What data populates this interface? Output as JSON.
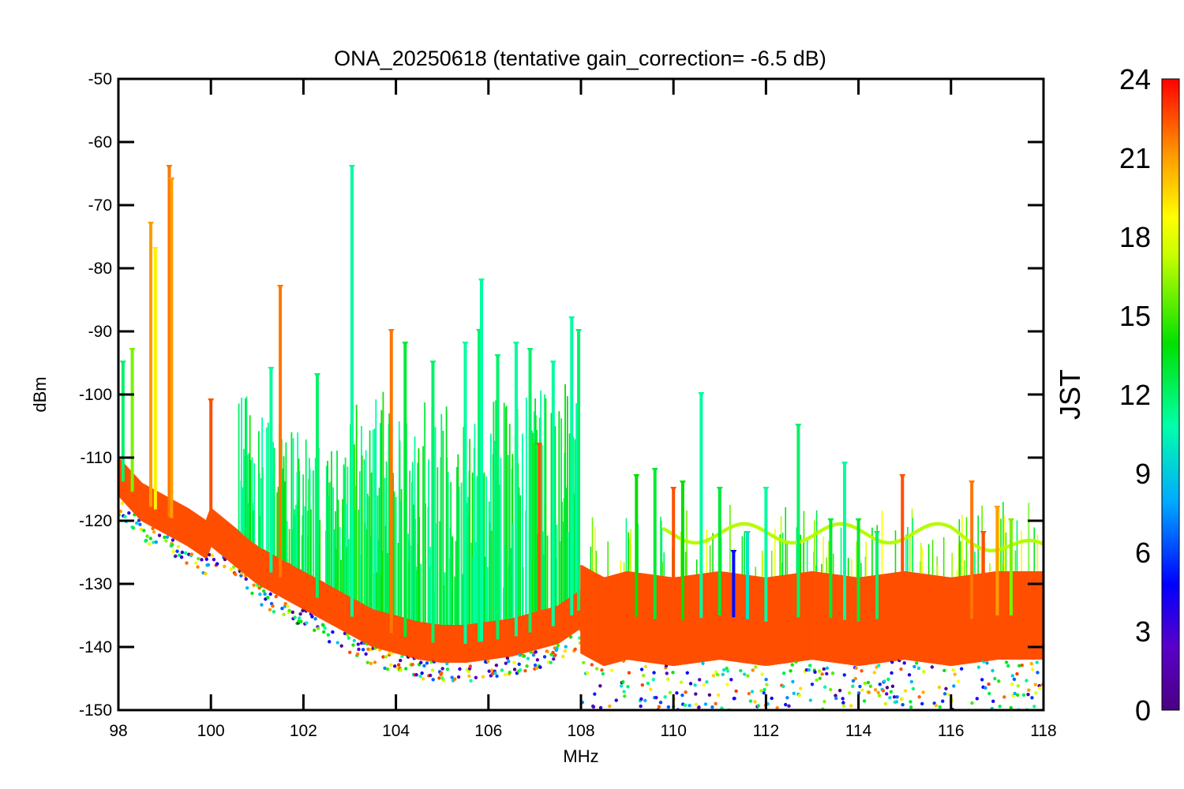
{
  "chart_data": {
    "type": "scatter",
    "title": "ONA_20250618 (tentative gain_correction= -6.5 dB)",
    "xlabel": "MHz",
    "ylabel": "dBm",
    "xlim": [
      98,
      118
    ],
    "ylim": [
      -150,
      -50
    ],
    "x_ticks": [
      "98",
      "100",
      "102",
      "104",
      "106",
      "108",
      "110",
      "112",
      "114",
      "116",
      "118"
    ],
    "y_ticks": [
      "-50",
      "-60",
      "-70",
      "-80",
      "-90",
      "-100",
      "-110",
      "-120",
      "-130",
      "-140",
      "-150"
    ],
    "grid": false,
    "colorbar": {
      "label": "JST",
      "min": 0,
      "max": 24,
      "ticks": [
        "0",
        "3",
        "6",
        "9",
        "12",
        "15",
        "18",
        "21",
        "24"
      ],
      "colormap": "rainbow"
    },
    "series": [
      {
        "description_key": "noise_floor",
        "points": [
          [
            98.0,
            -113
          ],
          [
            98.5,
            -117
          ],
          [
            99.0,
            -119
          ],
          [
            99.5,
            -121
          ],
          [
            99.9,
            -123
          ],
          [
            100.0,
            -121
          ],
          [
            100.5,
            -124
          ],
          [
            101.0,
            -127
          ],
          [
            101.5,
            -129
          ],
          [
            102.0,
            -131
          ],
          [
            102.5,
            -133
          ],
          [
            103.0,
            -135
          ],
          [
            103.5,
            -137
          ],
          [
            104.0,
            -138
          ],
          [
            104.5,
            -139
          ],
          [
            105.0,
            -139.5
          ],
          [
            105.5,
            -139.5
          ],
          [
            106.0,
            -139
          ],
          [
            106.5,
            -138.5
          ],
          [
            107.0,
            -137.5
          ],
          [
            107.5,
            -136.5
          ],
          [
            108.0,
            -134
          ],
          [
            108.5,
            -136
          ],
          [
            109.0,
            -135
          ],
          [
            110.0,
            -136
          ],
          [
            111.0,
            -135
          ],
          [
            112.0,
            -136
          ],
          [
            113.0,
            -135
          ],
          [
            114.0,
            -136
          ],
          [
            115.0,
            -135
          ],
          [
            116.0,
            -136
          ],
          [
            117.0,
            -135
          ],
          [
            118.0,
            -135
          ]
        ]
      },
      {
        "description_key": "peaks",
        "points": [
          [
            98.1,
            -95,
            12
          ],
          [
            98.3,
            -93,
            16
          ],
          [
            98.7,
            -73,
            21
          ],
          [
            98.8,
            -77,
            19
          ],
          [
            99.1,
            -64,
            22
          ],
          [
            99.15,
            -66,
            21
          ],
          [
            100.0,
            -101,
            23
          ],
          [
            101.5,
            -83,
            22
          ],
          [
            101.3,
            -96,
            11
          ],
          [
            102.3,
            -97,
            12
          ],
          [
            103.05,
            -64,
            11
          ],
          [
            103.9,
            -90,
            22
          ],
          [
            104.2,
            -92,
            13
          ],
          [
            104.8,
            -95,
            12
          ],
          [
            105.5,
            -92,
            11
          ],
          [
            105.8,
            -90,
            12
          ],
          [
            105.85,
            -82,
            11
          ],
          [
            106.2,
            -94,
            12
          ],
          [
            106.6,
            -92,
            11
          ],
          [
            106.9,
            -93,
            12
          ],
          [
            107.1,
            -108,
            23
          ],
          [
            107.4,
            -95,
            11
          ],
          [
            107.8,
            -88,
            11
          ],
          [
            107.95,
            -90,
            12
          ],
          [
            109.2,
            -113,
            14
          ],
          [
            109.6,
            -112,
            13
          ],
          [
            110.0,
            -115,
            23
          ],
          [
            110.2,
            -114,
            14
          ],
          [
            110.6,
            -100,
            11
          ],
          [
            111.0,
            -115,
            13
          ],
          [
            111.3,
            -125,
            5
          ],
          [
            111.6,
            -122,
            10
          ],
          [
            112.0,
            -115,
            11
          ],
          [
            112.7,
            -105,
            12
          ],
          [
            113.4,
            -120,
            13
          ],
          [
            113.7,
            -111,
            11
          ],
          [
            114.0,
            -120,
            13
          ],
          [
            114.4,
            -122,
            12
          ],
          [
            114.95,
            -113,
            23
          ],
          [
            116.45,
            -114,
            22
          ],
          [
            116.7,
            -122,
            23
          ],
          [
            117.0,
            -118,
            21
          ],
          [
            117.3,
            -120,
            16
          ]
        ]
      }
    ]
  }
}
